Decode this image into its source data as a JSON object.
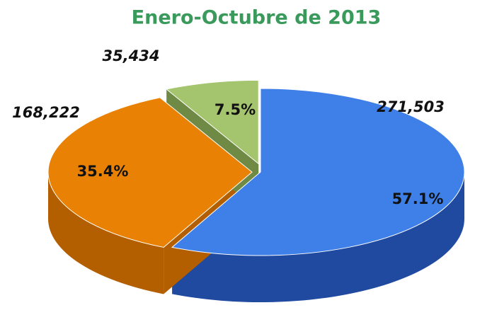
{
  "chart_data": {
    "type": "pie",
    "title": "Enero-Octubre de 2013",
    "values": [
      271503,
      168222,
      35434
    ],
    "value_labels": [
      "271,503",
      "168,222",
      "35,434"
    ],
    "percentages": [
      57.1,
      35.4,
      7.5
    ],
    "percentage_labels": [
      "57.1%",
      "35.4%",
      "7.5%"
    ],
    "colors": [
      "#3f7fe8",
      "#e98204",
      "#a4c46e"
    ],
    "side_colors": [
      "#1f4aa0",
      "#b35f00",
      "#6f8a45"
    ]
  }
}
